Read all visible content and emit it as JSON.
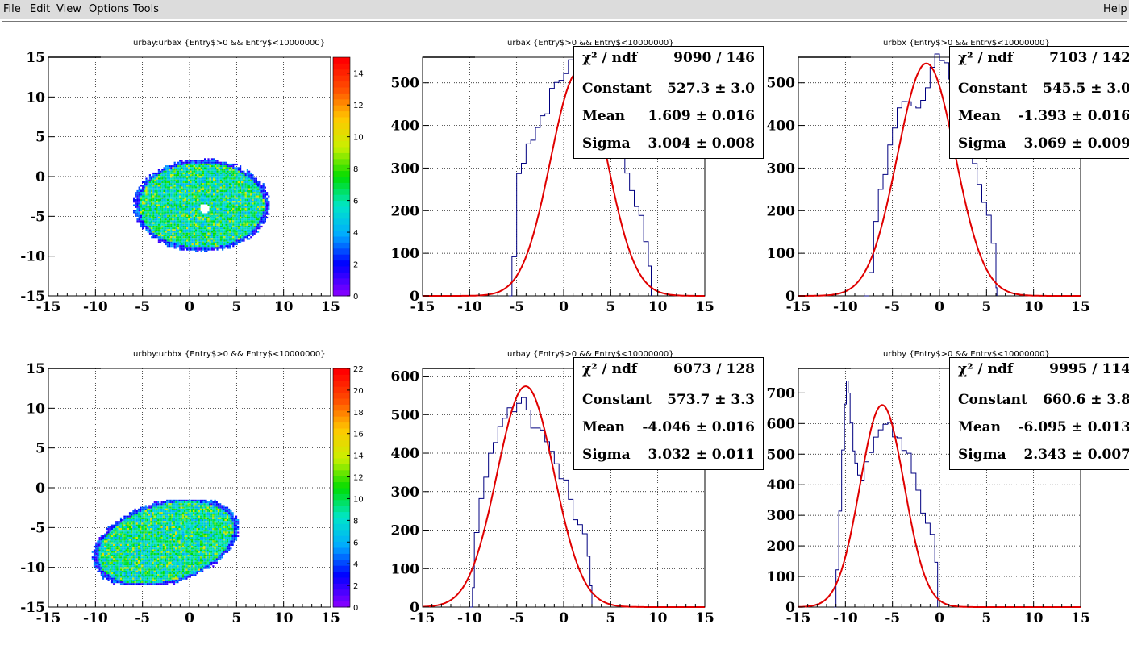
{
  "menu": {
    "file": "File",
    "edit": "Edit",
    "view": "View",
    "options": "Options",
    "tools": "Tools",
    "help": "Help"
  },
  "chart_data": [
    {
      "type": "heatmap",
      "title": "urbay:urbax {Entry$>0 && Entry$<10000000}",
      "xlim": [
        -15,
        15
      ],
      "ylim": [
        -15,
        15
      ],
      "xticks": [
        "-15",
        "-10",
        "-5",
        "0",
        "5",
        "10",
        "15"
      ],
      "yticks": [
        "-15",
        "-10",
        "-5",
        "0",
        "5",
        "10",
        "15"
      ],
      "zlim": [
        0,
        15
      ],
      "zticks": [
        "0",
        "2",
        "4",
        "6",
        "8",
        "10",
        "12",
        "14"
      ],
      "grid": true,
      "blob": {
        "center": [
          1.2,
          -3.5
        ],
        "radius_x": 7.2,
        "radius_y": 5.8,
        "hole": [
          1.5,
          -3.9
        ]
      }
    },
    {
      "type": "line",
      "title": "urbax {Entry$>0 && Entry$<10000000}",
      "xlim": [
        -15,
        15
      ],
      "ylim": [
        0,
        560
      ],
      "xticks": [
        "-15",
        "-10",
        "-5",
        "0",
        "5",
        "10",
        "15"
      ],
      "yticks": [
        "0",
        "100",
        "200",
        "300",
        "400",
        "500"
      ],
      "grid": true,
      "stats": [
        {
          "key": "χ² / ndf",
          "value": "9090 / 146"
        },
        {
          "key": "Constant",
          "value": "527.3 ± 3.0"
        },
        {
          "key": "Mean",
          "value": "1.609 ± 0.016"
        },
        {
          "key": "Sigma",
          "value": "3.004 ± 0.008"
        }
      ],
      "fit": {
        "constant": 527.3,
        "mean": 1.609,
        "sigma": 3.004
      },
      "hist": {
        "x": [
          -5.8,
          -5.5,
          -5,
          -4.5,
          -4,
          -3.5,
          -3,
          -2.5,
          -2,
          -1.5,
          -1,
          -0.5,
          0,
          0.5,
          1,
          1.5,
          2,
          2.5,
          3,
          3.5,
          4,
          4.5,
          5,
          5.5,
          6,
          6.5,
          7,
          7.5,
          8,
          8.5,
          9,
          9.3
        ],
        "y": [
          0,
          80,
          280,
          320,
          360,
          380,
          400,
          420,
          440,
          480,
          500,
          520,
          530,
          540,
          560,
          560,
          550,
          540,
          520,
          500,
          460,
          420,
          390,
          350,
          330,
          300,
          250,
          220,
          190,
          130,
          60,
          0
        ]
      }
    },
    {
      "type": "line",
      "title": "urbbx {Entry$>0 && Entry$<10000000}",
      "xlim": [
        -15,
        15
      ],
      "ylim": [
        0,
        560
      ],
      "xticks": [
        "-15",
        "-10",
        "-5",
        "0",
        "5",
        "10",
        "15"
      ],
      "yticks": [
        "0",
        "100",
        "200",
        "300",
        "400",
        "500"
      ],
      "grid": true,
      "stats": [
        {
          "key": "χ² / ndf",
          "value": "7103 / 142"
        },
        {
          "key": "Constant",
          "value": "545.5 ± 3.0"
        },
        {
          "key": "Mean",
          "value": "-1.393 ± 0.016"
        },
        {
          "key": "Sigma",
          "value": "3.069 ± 0.009"
        }
      ],
      "fit": {
        "constant": 545.5,
        "mean": -1.393,
        "sigma": 3.069
      },
      "hist": {
        "x": [
          -8,
          -7.5,
          -7,
          -6.5,
          -6,
          -5.5,
          -5,
          -4.5,
          -4,
          -3.5,
          -3,
          -2.5,
          -2,
          -1.5,
          -1,
          -0.5,
          0,
          0.5,
          1,
          1.5,
          2,
          2.5,
          3,
          3.5,
          4,
          4.5,
          5,
          5.5,
          6,
          6.1
        ],
        "y": [
          0,
          40,
          160,
          240,
          300,
          360,
          400,
          440,
          470,
          460,
          440,
          430,
          450,
          500,
          540,
          560,
          560,
          540,
          520,
          480,
          440,
          400,
          340,
          300,
          260,
          220,
          180,
          120,
          30,
          0
        ]
      }
    },
    {
      "type": "heatmap",
      "title": "urbby:urbbx {Entry$>0 && Entry$<10000000}",
      "xlim": [
        -15,
        15
      ],
      "ylim": [
        -15,
        15
      ],
      "xticks": [
        "-15",
        "-10",
        "-5",
        "0",
        "5",
        "10",
        "15"
      ],
      "yticks": [
        "-15",
        "-10",
        "-5",
        "0",
        "5",
        "10",
        "15"
      ],
      "zlim": [
        0,
        22
      ],
      "zticks": [
        "0",
        "2",
        "4",
        "6",
        "8",
        "10",
        "12",
        "14",
        "16",
        "18",
        "20",
        "22"
      ],
      "grid": true,
      "blob": {
        "center": [
          -2.6,
          -6.8
        ],
        "radius_x": 7.8,
        "radius_y": 5.3,
        "hole": null
      }
    },
    {
      "type": "line",
      "title": "urbay {Entry$>0 && Entry$<10000000}",
      "xlim": [
        -15,
        15
      ],
      "ylim": [
        0,
        620
      ],
      "xticks": [
        "-15",
        "-10",
        "-5",
        "0",
        "5",
        "10",
        "15"
      ],
      "yticks": [
        "0",
        "100",
        "200",
        "300",
        "400",
        "500",
        "600"
      ],
      "grid": true,
      "stats": [
        {
          "key": "χ² / ndf",
          "value": "6073 / 128"
        },
        {
          "key": "Constant",
          "value": "573.7 ± 3.3"
        },
        {
          "key": "Mean",
          "value": "-4.046 ± 0.016"
        },
        {
          "key": "Sigma",
          "value": "3.032 ± 0.011"
        }
      ],
      "fit": {
        "constant": 573.7,
        "mean": -4.046,
        "sigma": 3.032
      },
      "hist": {
        "x": [
          -10,
          -9.7,
          -9.5,
          -9,
          -8.5,
          -8,
          -7.5,
          -7,
          -6.5,
          -6,
          -5.5,
          -5,
          -4.5,
          -4,
          -3.5,
          -3,
          -2.5,
          -2,
          -1.5,
          -1,
          -0.5,
          0,
          0.5,
          1,
          1.5,
          2,
          2.5,
          2.8,
          3
        ],
        "y": [
          0,
          60,
          180,
          280,
          330,
          400,
          440,
          470,
          480,
          510,
          520,
          540,
          530,
          520,
          480,
          460,
          450,
          440,
          400,
          370,
          340,
          320,
          280,
          230,
          200,
          180,
          140,
          60,
          0
        ]
      }
    },
    {
      "type": "line",
      "title": "urbby {Entry$>0 && Entry$<10000000}",
      "xlim": [
        -15,
        15
      ],
      "ylim": [
        0,
        780
      ],
      "xticks": [
        "-15",
        "-10",
        "-5",
        "0",
        "5",
        "10",
        "15"
      ],
      "yticks": [
        "0",
        "100",
        "200",
        "300",
        "400",
        "500",
        "600",
        "700"
      ],
      "grid": true,
      "stats": [
        {
          "key": "χ² / ndf",
          "value": "9995 / 114"
        },
        {
          "key": "Constant",
          "value": "660.6 ± 3.8"
        },
        {
          "key": "Mean",
          "value": "-6.095 ± 0.013"
        },
        {
          "key": "Sigma",
          "value": "2.343 ± 0.007"
        }
      ],
      "fit": {
        "constant": 660.6,
        "mean": -6.095,
        "sigma": 2.343
      },
      "hist": {
        "x": [
          -11.2,
          -11,
          -10.7,
          -10.4,
          -10.1,
          -9.9,
          -9.7,
          -9.5,
          -9.2,
          -9,
          -8.7,
          -8.4,
          -8,
          -7.5,
          -7,
          -6.5,
          -6,
          -5.5,
          -5,
          -4.5,
          -4,
          -3.5,
          -3,
          -2.5,
          -2,
          -1.5,
          -1,
          -0.5,
          -0.2
        ],
        "y": [
          0,
          120,
          300,
          500,
          650,
          740,
          700,
          600,
          520,
          480,
          440,
          420,
          480,
          520,
          560,
          590,
          600,
          590,
          570,
          540,
          520,
          500,
          450,
          380,
          320,
          260,
          240,
          150,
          0
        ]
      }
    }
  ]
}
